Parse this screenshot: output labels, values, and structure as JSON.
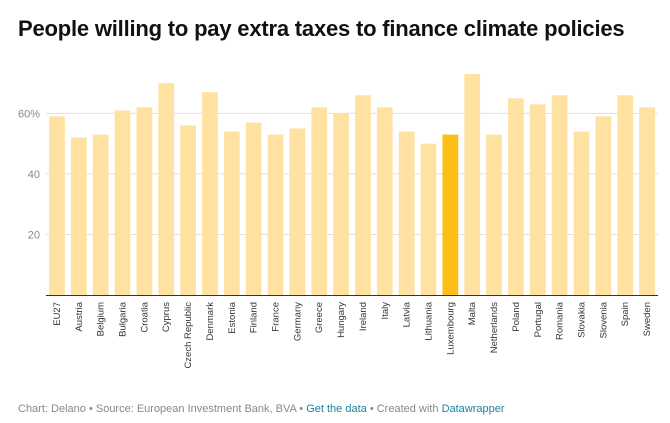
{
  "title": "People willing to pay extra taxes to finance climate policies",
  "footer": {
    "chart_by": "Chart: Delano",
    "separator": "•",
    "source": "Source: European Investment Bank, BVA",
    "get_data": "Get the data",
    "created_with": "Created with",
    "tool": "Datawrapper"
  },
  "colors": {
    "bar": "#ffe2a1",
    "highlight": "#fbbf18",
    "grid": "#e0e0e0",
    "axis": "#333333"
  },
  "chart_data": {
    "type": "bar",
    "title": "People willing to pay extra taxes to finance climate policies",
    "xlabel": "",
    "ylabel": "",
    "ylim": [
      0,
      75
    ],
    "yticks": [
      20,
      40,
      60
    ],
    "ytick_labels": [
      "20",
      "40",
      "60%"
    ],
    "grid": true,
    "highlight": "Luxembourg",
    "categories": [
      "EU27",
      "Austria",
      "Belgium",
      "Bulgaria",
      "Croatia",
      "Cyprus",
      "Czech Republic",
      "Denmark",
      "Estonia",
      "Finland",
      "France",
      "Germany",
      "Greece",
      "Hungary",
      "Ireland",
      "Italy",
      "Latvia",
      "Lithuania",
      "Luxembourg",
      "Malta",
      "Netherlands",
      "Poland",
      "Portugal",
      "Romania",
      "Slovakia",
      "Slovenia",
      "Spain",
      "Sweden"
    ],
    "values": [
      59,
      52,
      53,
      61,
      62,
      70,
      56,
      67,
      54,
      57,
      53,
      55,
      62,
      60,
      66,
      62,
      54,
      50,
      53,
      73,
      53,
      65,
      63,
      66,
      54,
      59,
      66,
      62
    ]
  }
}
